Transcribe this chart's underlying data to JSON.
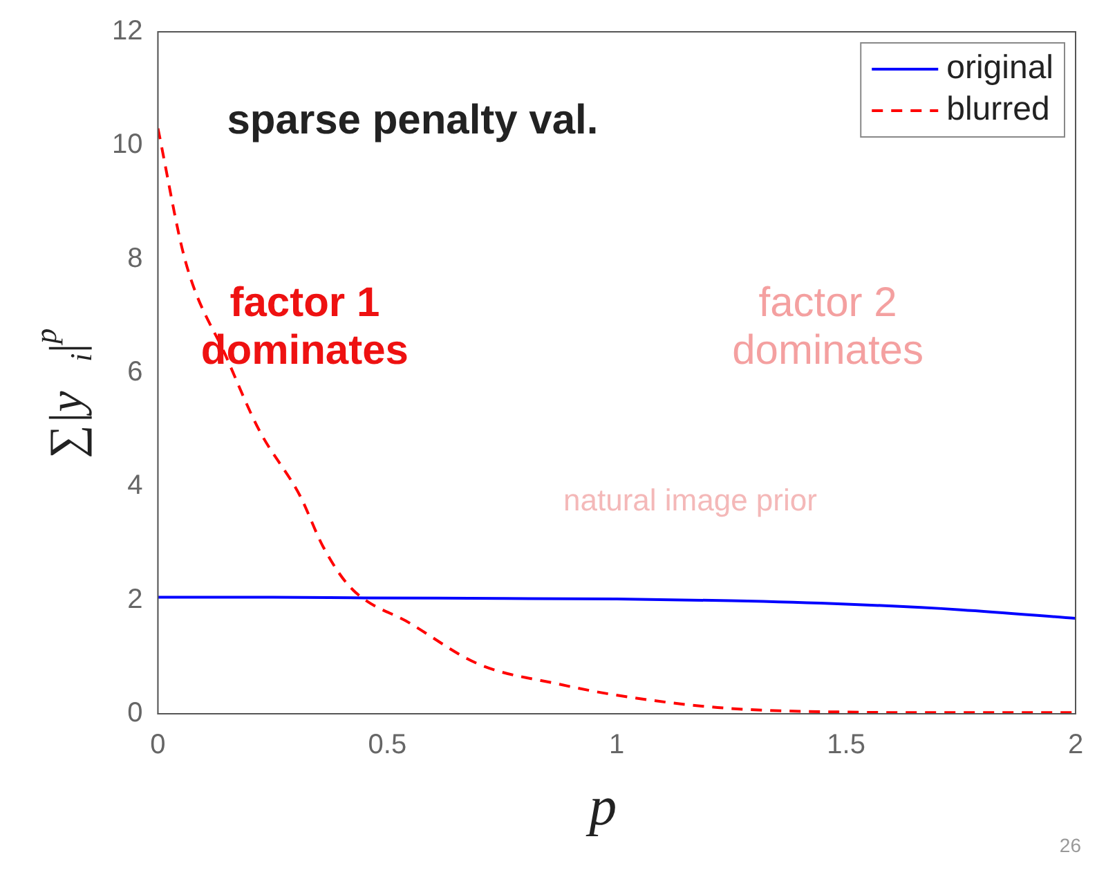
{
  "chart_data": {
    "type": "line",
    "title": "sparse penalty val.",
    "xlabel": "p",
    "ylabel": "∑|y$_{i}$|$^{p}$",
    "xlim": [
      0,
      2
    ],
    "xticks": [
      0,
      0.5,
      1,
      1.5,
      2
    ],
    "ylim": [
      0,
      12
    ],
    "yticks": [
      0,
      2,
      4,
      6,
      8,
      10,
      12
    ],
    "grid": false,
    "legend": "top right",
    "annotations": [
      "factor 1 dominates",
      "factor 2 dominates",
      "natural image prior",
      "26"
    ],
    "series": [
      {
        "name": "original",
        "color": "#0000ff",
        "line_style": "solid",
        "x": [
          0,
          0.25,
          0.45,
          0.75,
          1,
          1.25,
          1.5,
          1.75,
          2
        ],
        "values": [
          2.05,
          2.05,
          2.04,
          2.03,
          2.02,
          1.99,
          1.93,
          1.83,
          1.68
        ]
      },
      {
        "name": "blurred",
        "color": "#ff0000",
        "line_style": "dashed",
        "x": [
          0,
          0.06,
          0.15,
          0.22,
          0.31,
          0.36,
          0.42,
          0.55,
          0.7,
          0.875,
          0.99,
          1.22,
          1.5,
          1.75,
          2
        ],
        "values": [
          10.3,
          7.96,
          6.26,
          5.0,
          3.83,
          2.94,
          2.22,
          1.59,
          0.87,
          0.52,
          0.34,
          0.11,
          0.03,
          0.02,
          0.02
        ]
      }
    ]
  }
}
